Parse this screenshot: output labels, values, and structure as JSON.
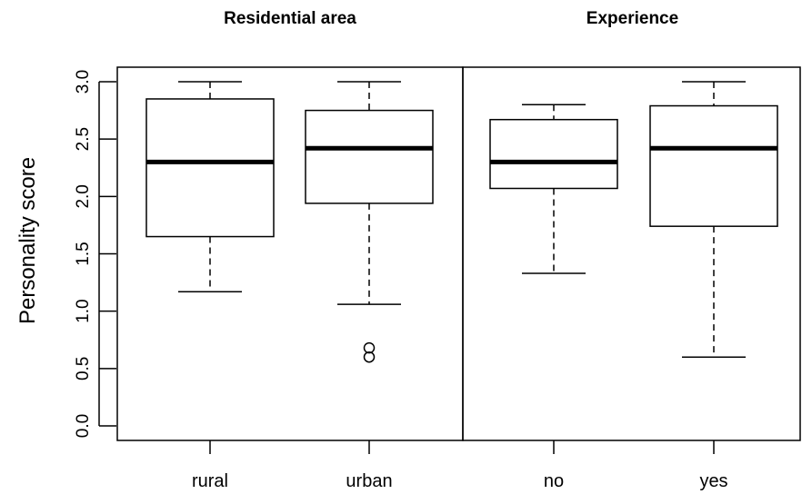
{
  "chart_data": {
    "type": "boxplot",
    "ylabel": "Personality score",
    "ylim": [
      0,
      3
    ],
    "yticks": [
      0.0,
      0.5,
      1.0,
      1.5,
      2.0,
      2.5,
      3.0
    ],
    "ytick_labels": [
      "0.0",
      "0.5",
      "1.0",
      "1.5",
      "2.0",
      "2.5",
      "3.0"
    ],
    "grid": false,
    "panels": [
      {
        "title": "Residential area",
        "groups": [
          {
            "label": "rural",
            "whisker_low": 1.17,
            "q1": 1.65,
            "median": 2.3,
            "q3": 2.85,
            "whisker_high": 3.0,
            "outliers": []
          },
          {
            "label": "urban",
            "whisker_low": 1.06,
            "q1": 1.94,
            "median": 2.42,
            "q3": 2.75,
            "whisker_high": 3.0,
            "outliers": [
              0.6,
              0.68
            ]
          }
        ]
      },
      {
        "title": "Experience",
        "groups": [
          {
            "label": "no",
            "whisker_low": 1.33,
            "q1": 2.07,
            "median": 2.3,
            "q3": 2.67,
            "whisker_high": 2.8,
            "outliers": []
          },
          {
            "label": "yes",
            "whisker_low": 0.6,
            "q1": 1.74,
            "median": 2.42,
            "q3": 2.79,
            "whisker_high": 3.0,
            "outliers": []
          }
        ]
      }
    ]
  }
}
